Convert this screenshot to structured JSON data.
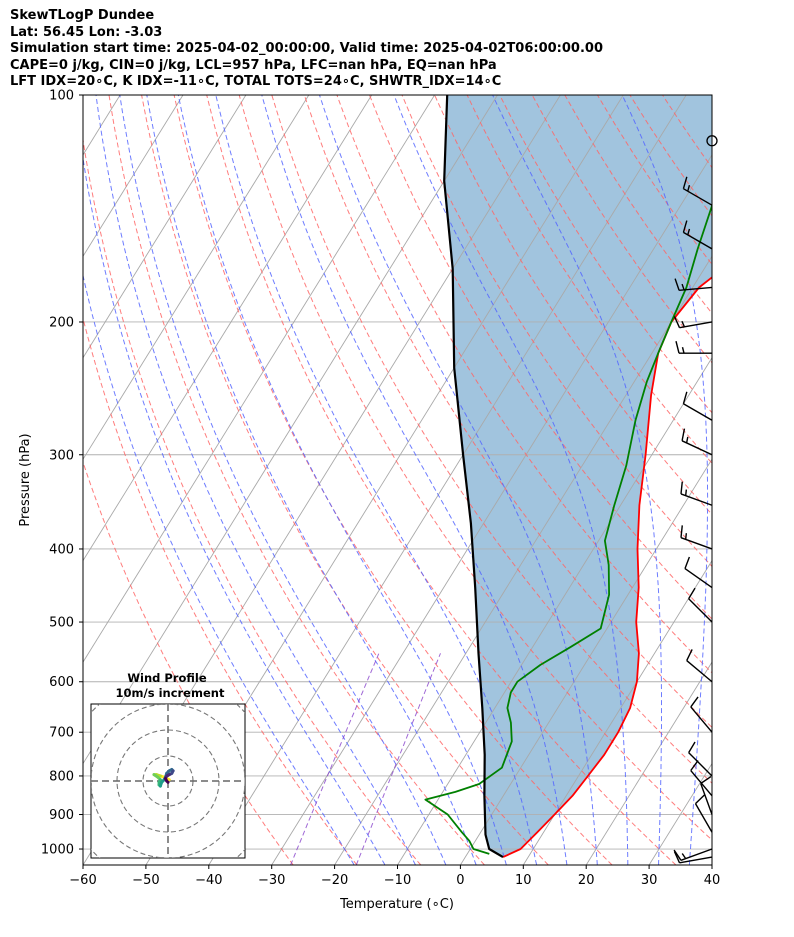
{
  "header": {
    "title": "SkewTLogP Dundee",
    "location": "Lat: 56.45   Lon: -3.03",
    "times": "Simulation start time: 2025-04-02_00:00:00, Valid time: 2025-04-02T06:00:00.00",
    "indices1": "CAPE=0 j/kg, CIN=0 j/kg, LCL=957 hPa, LFC=nan hPa, EQ=nan hPa",
    "indices2": "LFT IDX=20∘C, K IDX=-11∘C, TOTAL TOTS=24∘C, SHWTR_IDX=14∘C"
  },
  "chart_data": {
    "type": "line",
    "xlabel": "Temperature (∘C)",
    "ylabel": "Pressure (hPa)",
    "xlim": [
      -60,
      40
    ],
    "ylim": [
      1050,
      100
    ],
    "y_scale": "log",
    "x_ticks": [
      "−60",
      "−50",
      "−40",
      "−30",
      "−20",
      "−10",
      "0",
      "10",
      "20",
      "30",
      "40"
    ],
    "y_ticks": [
      "100",
      "200",
      "300",
      "400",
      "500",
      "600",
      "700",
      "800",
      "900",
      "1000"
    ],
    "grid": true,
    "series": [
      {
        "color": "#ff0000",
        "points": [
          [
            6,
            1025
          ],
          [
            8,
            1000
          ],
          [
            9,
            950
          ],
          [
            10,
            900
          ],
          [
            11,
            850
          ],
          [
            11.5,
            800
          ],
          [
            12,
            750
          ],
          [
            12,
            700
          ],
          [
            11.5,
            650
          ],
          [
            10,
            600
          ],
          [
            7.5,
            550
          ],
          [
            4,
            500
          ],
          [
            1,
            450
          ],
          [
            -3,
            400
          ],
          [
            -7,
            350
          ],
          [
            -11,
            300
          ],
          [
            -16,
            250
          ],
          [
            -19,
            220
          ],
          [
            -20,
            200
          ],
          [
            -19,
            180
          ],
          [
            -17,
            170
          ],
          [
            -13,
            150
          ],
          [
            -7,
            125
          ],
          [
            -1,
            115
          ],
          [
            0,
            100
          ]
        ]
      },
      {
        "color": "#008000",
        "points": [
          [
            3.5,
            1015
          ],
          [
            0.5,
            1000
          ],
          [
            -1,
            975
          ],
          [
            -3,
            950
          ],
          [
            -7,
            900
          ],
          [
            -12,
            860
          ],
          [
            -8,
            840
          ],
          [
            -5,
            820
          ],
          [
            -3,
            780
          ],
          [
            -4,
            720
          ],
          [
            -6,
            680
          ],
          [
            -8,
            650
          ],
          [
            -9,
            620
          ],
          [
            -9,
            600
          ],
          [
            -7,
            570
          ],
          [
            -4,
            540
          ],
          [
            -1,
            510
          ],
          [
            -3,
            460
          ],
          [
            -6,
            420
          ],
          [
            -9,
            390
          ],
          [
            -11,
            350
          ],
          [
            -13,
            310
          ],
          [
            -16,
            270
          ],
          [
            -18,
            240
          ],
          [
            -19,
            220
          ],
          [
            -20,
            200
          ],
          [
            -21,
            180
          ],
          [
            -23,
            160
          ],
          [
            -25,
            140
          ],
          [
            -25,
            130
          ],
          [
            -22,
            115
          ],
          [
            -21,
            100
          ]
        ]
      },
      {
        "color": "#000000",
        "points": [
          [
            6,
            1025
          ],
          [
            3,
            1000
          ],
          [
            1,
            957
          ],
          [
            -3,
            850
          ],
          [
            -7,
            750
          ],
          [
            -12,
            650
          ],
          [
            -18,
            550
          ],
          [
            -25,
            450
          ],
          [
            -32,
            370
          ],
          [
            -40,
            300
          ],
          [
            -50,
            230
          ],
          [
            -60,
            170
          ],
          [
            -70,
            130
          ],
          [
            -78,
            100
          ]
        ]
      }
    ],
    "shading": {
      "color": "#a1c4de",
      "between": [
        "parcel",
        "temperature"
      ]
    },
    "isotherm_color": "#a9a9a9",
    "dry_adiabat_color": "#ff6666",
    "moist_adiabat_color": "#5566ff",
    "mixing_ratio_color": "#8844cc",
    "wind_barbs": [
      {
        "p": 1025,
        "dir": 260,
        "spd": 10
      },
      {
        "p": 1000,
        "dir": 250,
        "spd": 15
      },
      {
        "p": 950,
        "dir": 330,
        "spd": 10
      },
      {
        "p": 900,
        "dir": 340,
        "spd": 10
      },
      {
        "p": 850,
        "dir": 320,
        "spd": 10
      },
      {
        "p": 800,
        "dir": 315,
        "spd": 10
      },
      {
        "p": 700,
        "dir": 320,
        "spd": 10
      },
      {
        "p": 600,
        "dir": 310,
        "spd": 10
      },
      {
        "p": 500,
        "dir": 315,
        "spd": 10
      },
      {
        "p": 450,
        "dir": 305,
        "spd": 10
      },
      {
        "p": 400,
        "dir": 290,
        "spd": 15
      },
      {
        "p": 350,
        "dir": 290,
        "spd": 15
      },
      {
        "p": 300,
        "dir": 295,
        "spd": 15
      },
      {
        "p": 270,
        "dir": 300,
        "spd": 10
      },
      {
        "p": 220,
        "dir": 270,
        "spd": 15
      },
      {
        "p": 200,
        "dir": 260,
        "spd": 15
      },
      {
        "p": 180,
        "dir": 265,
        "spd": 15
      },
      {
        "p": 160,
        "dir": 300,
        "spd": 15
      },
      {
        "p": 140,
        "dir": 300,
        "spd": 15
      },
      {
        "p": 115,
        "dir": 0,
        "spd": 0
      }
    ],
    "hodograph": {
      "title": "Wind Profile",
      "subtitle": "10m/s increment",
      "points": [
        [
          0.5,
          0.5
        ],
        [
          -0.5,
          1
        ],
        [
          -1.5,
          1.5
        ],
        [
          -3,
          2
        ],
        [
          -4.5,
          2.5
        ],
        [
          -5.5,
          2.5
        ],
        [
          -4,
          1.5
        ],
        [
          -3,
          0.5
        ],
        [
          -3.5,
          -0.5
        ],
        [
          -3.5,
          -1.5
        ],
        [
          -3,
          -2
        ],
        [
          -2.5,
          -0.5
        ],
        [
          -1.5,
          0.5
        ],
        [
          -1,
          1.5
        ],
        [
          -0.5,
          3
        ],
        [
          0.5,
          4
        ],
        [
          1.5,
          4.5
        ],
        [
          2,
          4
        ],
        [
          1.5,
          3
        ],
        [
          0.5,
          2.5
        ],
        [
          -0.5,
          2
        ],
        [
          -1,
          1
        ],
        [
          -0.5,
          0
        ],
        [
          0,
          -0.5
        ]
      ]
    }
  }
}
